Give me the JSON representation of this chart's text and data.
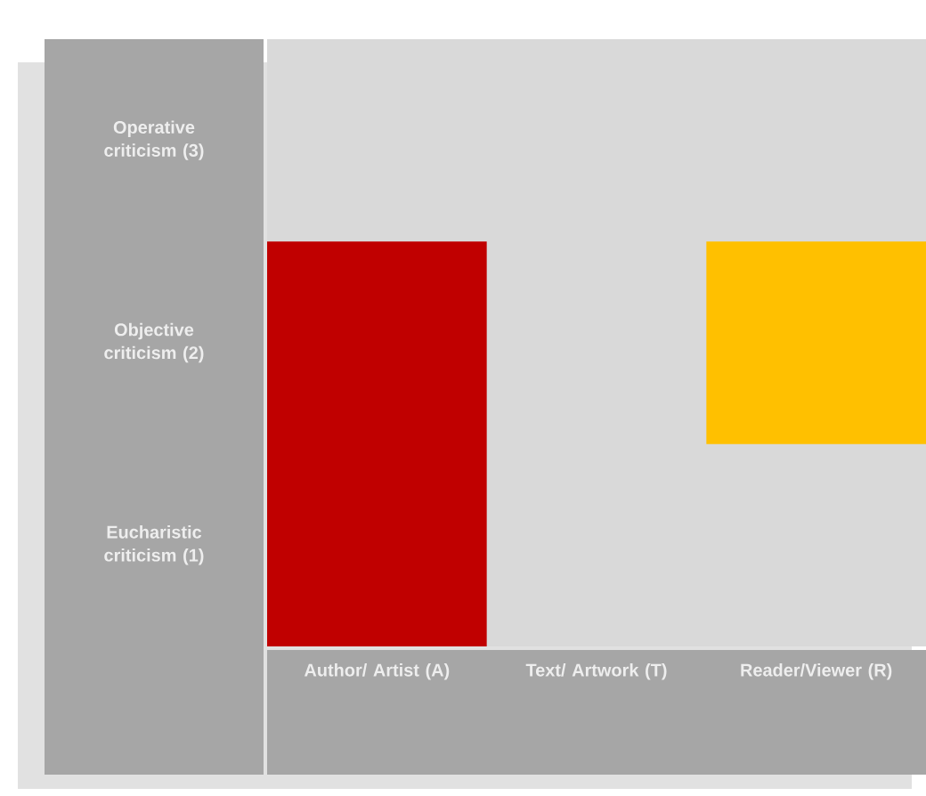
{
  "chart_data": {
    "type": "bar",
    "categories": [
      "Author/ Artist (A)",
      "Text/ Artwork (T)",
      "Reader/Viewer (R)"
    ],
    "values": [
      2,
      null,
      1
    ],
    "base": [
      0,
      null,
      1
    ],
    "colors": [
      "#c00000",
      "#ffffff",
      "#ffc000"
    ],
    "ylim": [
      0,
      3
    ],
    "yticks": [
      {
        "value": 0.5,
        "label": "Eucharistic criticism (1)"
      },
      {
        "value": 1.5,
        "label": "Objective criticism (2)"
      },
      {
        "value": 2.5,
        "label": "Operative criticism (3)"
      }
    ]
  }
}
